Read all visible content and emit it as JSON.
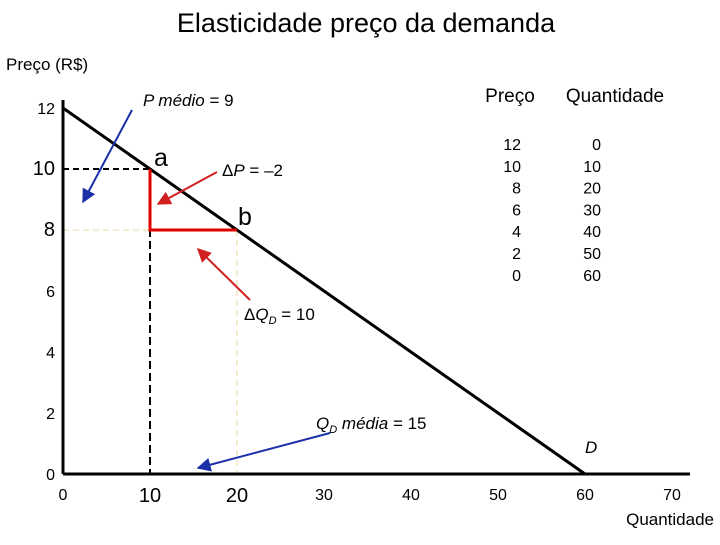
{
  "chart_data": {
    "type": "line",
    "title": "Elasticidade preço da demanda",
    "ylabel": "Preço (R$)",
    "xlabel": "Quantidade",
    "xlim": [
      0,
      70
    ],
    "ylim": [
      0,
      12
    ],
    "x_ticks": [
      "0",
      "10",
      "20",
      "30",
      "40",
      "50",
      "60",
      "70"
    ],
    "y_ticks": [
      "0",
      "2",
      "4",
      "6",
      "8",
      "10",
      "12"
    ],
    "emphasized_ticks": {
      "x": [
        "10",
        "20"
      ],
      "y": [
        "10",
        "8"
      ]
    },
    "series": [
      {
        "name": "D",
        "x": [
          0,
          10,
          20,
          30,
          40,
          50,
          60
        ],
        "y": [
          12,
          10,
          8,
          6,
          4,
          2,
          0
        ]
      }
    ],
    "points": [
      {
        "label": "a",
        "x": 10,
        "y": 10
      },
      {
        "label": "b",
        "x": 20,
        "y": 8
      }
    ],
    "annotations": {
      "p_medio": "P médio = 9",
      "delta_p": "ΔP = –2",
      "delta_q": "ΔQD = 10",
      "qd_media": "QD média = 15"
    },
    "table": {
      "headers": [
        "Preço",
        "Quantidade"
      ],
      "rows": [
        [
          "12",
          "0"
        ],
        [
          "10",
          "10"
        ],
        [
          "8",
          "20"
        ],
        [
          "6",
          "30"
        ],
        [
          "4",
          "40"
        ],
        [
          "2",
          "50"
        ],
        [
          "0",
          "60"
        ]
      ]
    },
    "colors": {
      "line": "#000000",
      "triangle": "#e00000",
      "red_arrows": "#d02020",
      "blue_arrows": "#1a2fa8",
      "guides": "#f0e6c0"
    }
  }
}
